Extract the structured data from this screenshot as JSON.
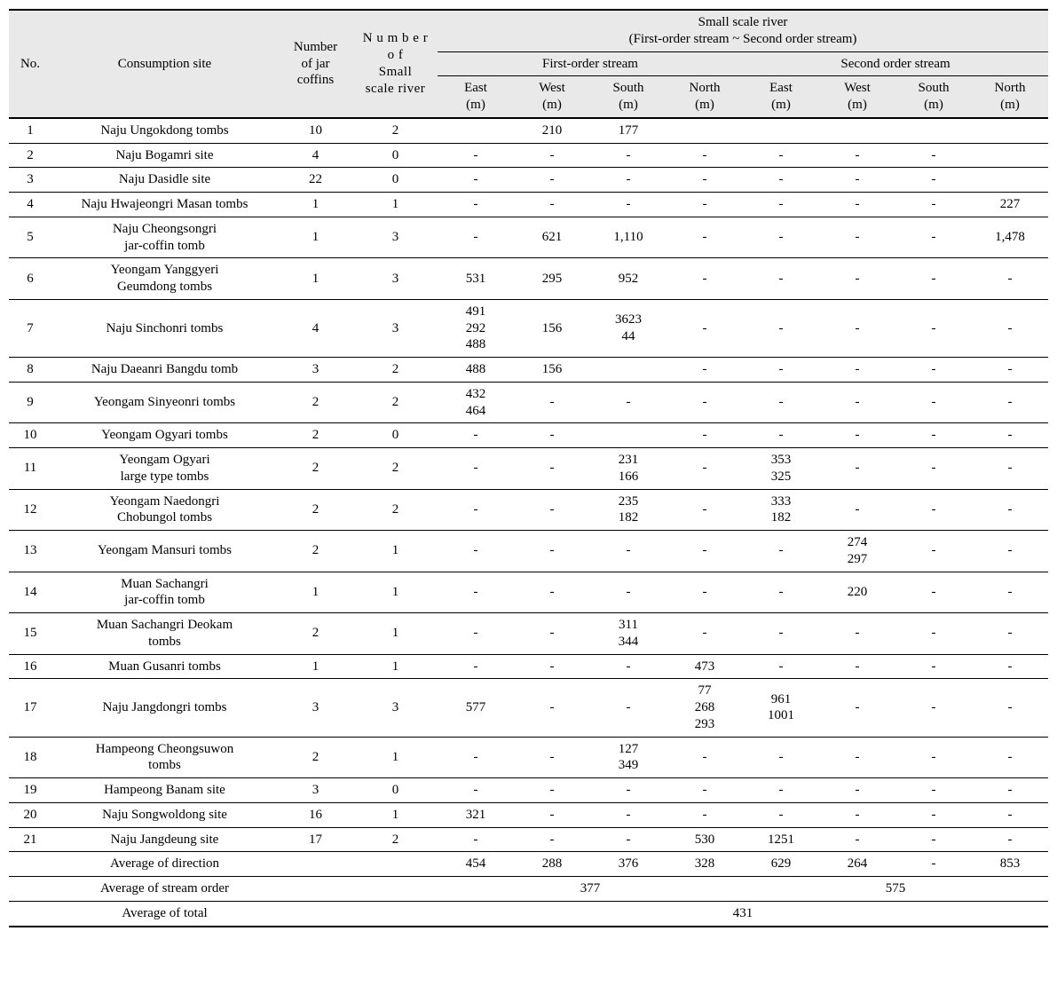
{
  "header": {
    "no": "No.",
    "site": "Consumption site",
    "jar": "Number\nof jar\ncoffins",
    "river": "N u m b e r\no f\nSmall\nscale river",
    "super": "Small scale river\n(First-order stream ~ Second order stream)",
    "first": "First-order stream",
    "second": "Second order stream",
    "east": "East\n(m)",
    "west": "West\n(m)",
    "south": "South\n(m)",
    "north": "North\n(m)"
  },
  "rows": [
    {
      "no": "1",
      "site": "Naju Ungokdong tombs",
      "jar": "10",
      "riv": "2",
      "f": [
        "",
        "210",
        "177",
        ""
      ],
      "s": [
        "",
        "",
        "",
        ""
      ]
    },
    {
      "no": "2",
      "site": "Naju Bogamri site",
      "jar": "4",
      "riv": "0",
      "f": [
        "-",
        "-",
        "-",
        "-"
      ],
      "s": [
        "-",
        "-",
        "-",
        ""
      ]
    },
    {
      "no": "3",
      "site": "Naju Dasidle site",
      "jar": "22",
      "riv": "0",
      "f": [
        "-",
        "-",
        "-",
        "-"
      ],
      "s": [
        "-",
        "-",
        "-",
        ""
      ]
    },
    {
      "no": "4",
      "site": "Naju Hwajeongri Masan tombs",
      "jar": "1",
      "riv": "1",
      "f": [
        "-",
        "-",
        "-",
        "-"
      ],
      "s": [
        "-",
        "-",
        "-",
        "227"
      ]
    },
    {
      "no": "5",
      "site": "Naju Cheongsongri\njar-coffin tomb",
      "jar": "1",
      "riv": "3",
      "f": [
        "-",
        "621",
        "1,110",
        "-"
      ],
      "s": [
        "-",
        "-",
        "-",
        "1,478"
      ]
    },
    {
      "no": "6",
      "site": "Yeongam Yanggyeri\nGeumdong tombs",
      "jar": "1",
      "riv": "3",
      "f": [
        "531",
        "295",
        "952",
        "-"
      ],
      "s": [
        "-",
        "-",
        "-",
        "-"
      ]
    },
    {
      "no": "7",
      "site": "Naju Sinchonri tombs",
      "jar": "4",
      "riv": "3",
      "f": [
        "491\n292\n488",
        "156",
        "3623\n44",
        "-"
      ],
      "s": [
        "-",
        "-",
        "-",
        "-"
      ]
    },
    {
      "no": "8",
      "site": "Naju Daeanri Bangdu tomb",
      "jar": "3",
      "riv": "2",
      "f": [
        "488",
        "156",
        "",
        "-"
      ],
      "s": [
        "-",
        "-",
        "-",
        "-"
      ]
    },
    {
      "no": "9",
      "site": "Yeongam Sinyeonri tombs",
      "jar": "2",
      "riv": "2",
      "f": [
        "432\n464",
        "-",
        "-",
        "-"
      ],
      "s": [
        "-",
        "-",
        "-",
        "-"
      ]
    },
    {
      "no": "10",
      "site": "Yeongam Ogyari tombs",
      "jar": "2",
      "riv": "0",
      "f": [
        "-",
        "-",
        "",
        "-"
      ],
      "s": [
        "-",
        "-",
        "-",
        "-"
      ]
    },
    {
      "no": "11",
      "site": "Yeongam Ogyari\nlarge type tombs",
      "jar": "2",
      "riv": "2",
      "f": [
        "-",
        "-",
        "231\n166",
        "-"
      ],
      "s": [
        "353\n325",
        "-",
        "-",
        "-"
      ]
    },
    {
      "no": "12",
      "site": "Yeongam Naedongri\nChobungol tombs",
      "jar": "2",
      "riv": "2",
      "f": [
        "-",
        "-",
        "235\n182",
        "-"
      ],
      "s": [
        "333\n182",
        "-",
        "-",
        "-"
      ]
    },
    {
      "no": "13",
      "site": "Yeongam Mansuri tombs",
      "jar": "2",
      "riv": "1",
      "f": [
        "-",
        "-",
        "-",
        "-"
      ],
      "s": [
        "-",
        "274\n297",
        "-",
        "-"
      ]
    },
    {
      "no": "14",
      "site": "Muan Sachangri\njar-coffin tomb",
      "jar": "1",
      "riv": "1",
      "f": [
        "-",
        "-",
        "-",
        "-"
      ],
      "s": [
        "-",
        "220",
        "-",
        "-"
      ]
    },
    {
      "no": "15",
      "site": "Muan Sachangri Deokam\ntombs",
      "jar": "2",
      "riv": "1",
      "f": [
        "-",
        "-",
        "311\n344",
        "-"
      ],
      "s": [
        "-",
        "-",
        "-",
        "-"
      ]
    },
    {
      "no": "16",
      "site": "Muan Gusanri tombs",
      "jar": "1",
      "riv": "1",
      "f": [
        "-",
        "-",
        "-",
        "473"
      ],
      "s": [
        "-",
        "-",
        "-",
        "-"
      ]
    },
    {
      "no": "17",
      "site": "Naju Jangdongri tombs",
      "jar": "3",
      "riv": "3",
      "f": [
        "577",
        "-",
        "-",
        "77\n268\n293"
      ],
      "s": [
        "961\n1001",
        "-",
        "-",
        "-"
      ]
    },
    {
      "no": "18",
      "site": "Hampeong Cheongsuwon\ntombs",
      "jar": "2",
      "riv": "1",
      "f": [
        "-",
        "-",
        "127\n349",
        "-"
      ],
      "s": [
        "-",
        "-",
        "-",
        "-"
      ]
    },
    {
      "no": "19",
      "site": "Hampeong Banam site",
      "jar": "3",
      "riv": "0",
      "f": [
        "-",
        "-",
        "-",
        "-"
      ],
      "s": [
        "-",
        "-",
        "-",
        "-"
      ]
    },
    {
      "no": "20",
      "site": "Naju Songwoldong site",
      "jar": "16",
      "riv": "1",
      "f": [
        "321",
        "-",
        "-",
        "-"
      ],
      "s": [
        "-",
        "-",
        "-",
        "-"
      ]
    },
    {
      "no": "21",
      "site": "Naju Jangdeung site",
      "jar": "17",
      "riv": "2",
      "f": [
        "-",
        "-",
        "-",
        "530"
      ],
      "s": [
        "1251",
        "-",
        "-",
        "-"
      ]
    }
  ],
  "summary": {
    "dir_label": "Average of direction",
    "dir_f": [
      "454",
      "288",
      "376",
      "328"
    ],
    "dir_s": [
      "629",
      "264",
      "-",
      "853"
    ],
    "stream_label": "Average of stream order",
    "stream_f": "377",
    "stream_s": "575",
    "total_label": "Average of total",
    "total": "431"
  }
}
